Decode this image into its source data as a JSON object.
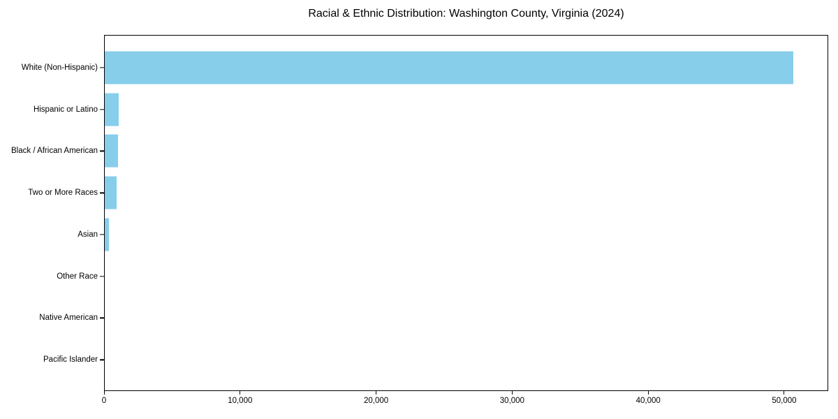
{
  "title": "Racial & Ethnic Distribution: Washington County, Virginia (2024)",
  "colors": {
    "bar": "#87CEEB",
    "axis": "#000000",
    "background": "#FFFFFF",
    "text": "#000000"
  },
  "chart_data": {
    "type": "bar",
    "orientation": "horizontal",
    "title": "Racial & Ethnic Distribution: Washington County, Virginia (2024)",
    "categories": [
      "White (Non-Hispanic)",
      "Hispanic or Latino",
      "Black / African American",
      "Two or More Races",
      "Asian",
      "Other Race",
      "Native American",
      "Pacific Islander"
    ],
    "values": [
      50700,
      1020,
      1000,
      860,
      300,
      0,
      0,
      0
    ],
    "xlabel": "",
    "ylabel": "",
    "xlim": [
      0,
      53235
    ],
    "xticks": [
      {
        "value": 0,
        "label": "0"
      },
      {
        "value": 10000,
        "label": "10,000"
      },
      {
        "value": 20000,
        "label": "20,000"
      },
      {
        "value": 30000,
        "label": "30,000"
      },
      {
        "value": 40000,
        "label": "40,000"
      },
      {
        "value": 50000,
        "label": "50,000"
      }
    ],
    "grid": false,
    "legend": "none",
    "bar_color": "#87CEEB"
  }
}
